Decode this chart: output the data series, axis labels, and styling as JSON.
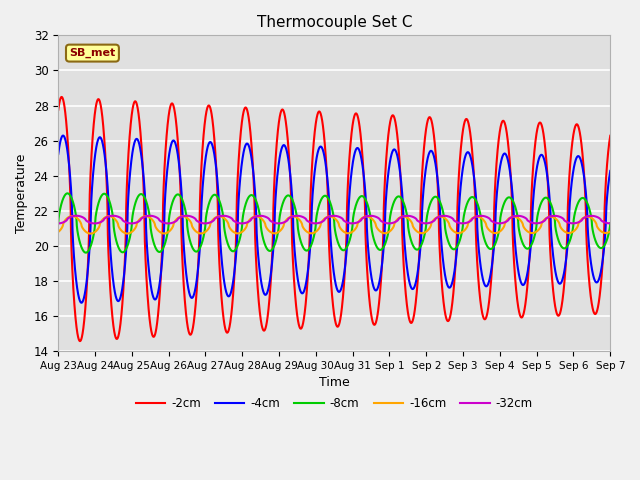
{
  "title": "Thermocouple Set C",
  "xlabel": "Time",
  "ylabel": "Temperature",
  "ylim": [
    14,
    32
  ],
  "yticks": [
    14,
    16,
    18,
    20,
    22,
    24,
    26,
    28,
    30,
    32
  ],
  "xtick_labels": [
    "Aug 23",
    "Aug 24",
    "Aug 25",
    "Aug 26",
    "Aug 27",
    "Aug 28",
    "Aug 29",
    "Aug 30",
    "Aug 31",
    "Sep 1",
    "Sep 2",
    "Sep 3",
    "Sep 4",
    "Sep 5",
    "Sep 6",
    "Sep 7"
  ],
  "bg_color": "#e0e0e0",
  "grid_color": "#ffffff",
  "fig_bg": "#f0f0f0",
  "legend_label": "SB_met",
  "legend_bg": "#ffff99",
  "legend_border": "#8b6914",
  "series": [
    {
      "label": "-2cm",
      "color": "#ff0000",
      "amp": 7.0,
      "mean": 21.5,
      "phase": 1.0,
      "decay": 0.018,
      "shape_power": 1.0
    },
    {
      "label": "-4cm",
      "color": "#0000ff",
      "amp": 4.8,
      "mean": 21.5,
      "phase": 0.75,
      "decay": 0.02,
      "shape_power": 1.0
    },
    {
      "label": "-8cm",
      "color": "#00cc00",
      "amp": 1.7,
      "mean": 21.3,
      "phase": 0.0,
      "decay": 0.012,
      "shape_power": 1.0
    },
    {
      "label": "-16cm",
      "color": "#ffa500",
      "amp": 0.5,
      "mean": 21.2,
      "phase": -0.8,
      "decay": 0.005,
      "shape_power": 1.0
    },
    {
      "label": "-32cm",
      "color": "#cc00cc",
      "amp": 0.22,
      "mean": 21.5,
      "phase": -1.5,
      "decay": 0.002,
      "shape_power": 1.0
    }
  ]
}
